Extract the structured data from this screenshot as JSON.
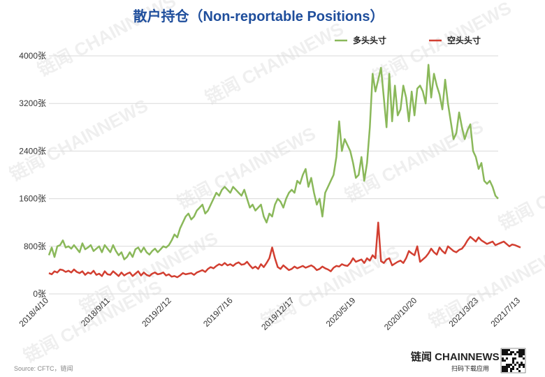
{
  "chart_data": {
    "type": "line",
    "title": "散户持仓（Non-reportable Positions）",
    "xlabel": "",
    "ylabel": "",
    "ylim": [
      0,
      4000
    ],
    "y_ticks": [
      "0张",
      "800张",
      "1600张",
      "2400张",
      "3200张",
      "4000张"
    ],
    "y_tick_values": [
      0,
      800,
      1600,
      2400,
      3200,
      4000
    ],
    "x_ticks": [
      "2018/4/10",
      "2018/9/11",
      "2019/2/12",
      "2019/7/16",
      "2019/12/17",
      "2020/5/19",
      "2020/10/20",
      "2021/3/23",
      "2021/7/13"
    ],
    "x_tick_positions": [
      0,
      22,
      44,
      66,
      88,
      110,
      132,
      154,
      169
    ],
    "grid": "horizontal",
    "legend_position": "top-right",
    "series": [
      {
        "name": "多头头寸",
        "color": "#8ab85a",
        "values": [
          650,
          780,
          620,
          800,
          820,
          900,
          780,
          800,
          760,
          820,
          760,
          700,
          850,
          750,
          780,
          820,
          720,
          760,
          800,
          700,
          820,
          760,
          700,
          820,
          720,
          650,
          700,
          580,
          620,
          700,
          620,
          750,
          780,
          700,
          780,
          700,
          660,
          720,
          760,
          700,
          750,
          800,
          780,
          820,
          900,
          1000,
          950,
          1100,
          1200,
          1300,
          1350,
          1250,
          1300,
          1400,
          1450,
          1500,
          1350,
          1400,
          1500,
          1600,
          1700,
          1650,
          1750,
          1800,
          1750,
          1700,
          1800,
          1750,
          1700,
          1650,
          1750,
          1600,
          1450,
          1500,
          1400,
          1450,
          1500,
          1300,
          1200,
          1350,
          1300,
          1500,
          1600,
          1550,
          1450,
          1600,
          1700,
          1750,
          1700,
          1900,
          1850,
          2000,
          2100,
          1800,
          1950,
          1700,
          1500,
          1600,
          1300,
          1700,
          1800,
          1900,
          2000,
          2300,
          2900,
          2400,
          2600,
          2500,
          2400,
          2200,
          1950,
          2000,
          2300,
          1900,
          2200,
          2800,
          3700,
          3400,
          3600,
          3800,
          3300,
          2800,
          3700,
          2900,
          3500,
          3000,
          3100,
          3500,
          3300,
          2900,
          3400,
          3000,
          3450,
          3500,
          3400,
          3200,
          3850,
          3300,
          3700,
          3500,
          3350,
          3100,
          3600,
          3200,
          2900,
          2600,
          2700,
          3050,
          2800,
          2600,
          2750,
          2850,
          2400,
          2300,
          2100,
          2200,
          1900,
          1850,
          1900,
          1800,
          1650,
          1600
        ],
        "values_note": ""
      },
      {
        "name": "空头头寸",
        "color": "#d23f31",
        "values": [
          350,
          330,
          380,
          360,
          410,
          400,
          370,
          390,
          360,
          410,
          370,
          350,
          380,
          320,
          360,
          340,
          390,
          320,
          340,
          300,
          380,
          330,
          320,
          380,
          340,
          300,
          360,
          310,
          340,
          360,
          300,
          340,
          380,
          310,
          360,
          320,
          300,
          340,
          360,
          330,
          340,
          360,
          310,
          330,
          290,
          300,
          280,
          310,
          350,
          330,
          340,
          350,
          320,
          360,
          380,
          400,
          370,
          420,
          450,
          430,
          470,
          500,
          480,
          520,
          480,
          500,
          470,
          510,
          530,
          490,
          500,
          540,
          480,
          430,
          460,
          420,
          500,
          450,
          520,
          600,
          780,
          600,
          450,
          420,
          480,
          440,
          400,
          420,
          460,
          430,
          450,
          470,
          440,
          460,
          480,
          450,
          400,
          420,
          460,
          430,
          410,
          380,
          440,
          470,
          460,
          500,
          480,
          470,
          520,
          600,
          540,
          560,
          580,
          520,
          600,
          560,
          650,
          600,
          1200,
          550,
          520,
          580,
          600,
          480,
          510,
          540,
          560,
          520,
          600,
          720,
          680,
          650,
          800,
          540,
          580,
          620,
          680,
          760,
          700,
          660,
          780,
          720,
          680,
          800,
          760,
          720,
          700,
          740,
          760,
          820,
          900,
          960,
          920,
          880,
          950,
          900,
          870,
          840,
          860,
          880,
          820,
          840,
          860,
          880,
          840,
          800,
          830,
          820,
          800,
          780
        ],
        "values_note": ""
      }
    ]
  },
  "watermark": {
    "text": "链闻 CHAINNEWS"
  },
  "footer": {
    "brand": "链闻 CHAINNEWS",
    "slogan": "扫码下载应用",
    "source": "Source: CFTC，链闻"
  }
}
